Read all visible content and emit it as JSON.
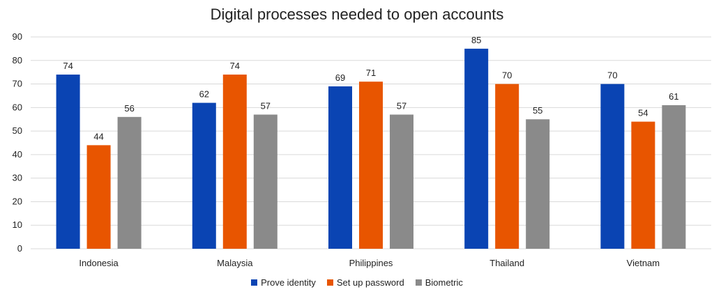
{
  "chart_data": {
    "type": "bar",
    "title": "Digital processes needed to open accounts",
    "categories": [
      "Indonesia",
      "Malaysia",
      "Philippines",
      "Thailand",
      "Vietnam"
    ],
    "series": [
      {
        "name": "Prove identity",
        "values": [
          74,
          62,
          69,
          85,
          70
        ],
        "color": "#0a44b3"
      },
      {
        "name": "Set up password",
        "values": [
          44,
          74,
          71,
          70,
          54
        ],
        "color": "#e85500"
      },
      {
        "name": "Biometric",
        "values": [
          56,
          57,
          57,
          55,
          61
        ],
        "color": "#8a8a8a"
      }
    ],
    "ylim": [
      0,
      90
    ],
    "yticks": [
      0,
      10,
      20,
      30,
      40,
      50,
      60,
      70,
      80,
      90
    ],
    "grid": true,
    "legend_position": "bottom",
    "data_labels": true
  }
}
